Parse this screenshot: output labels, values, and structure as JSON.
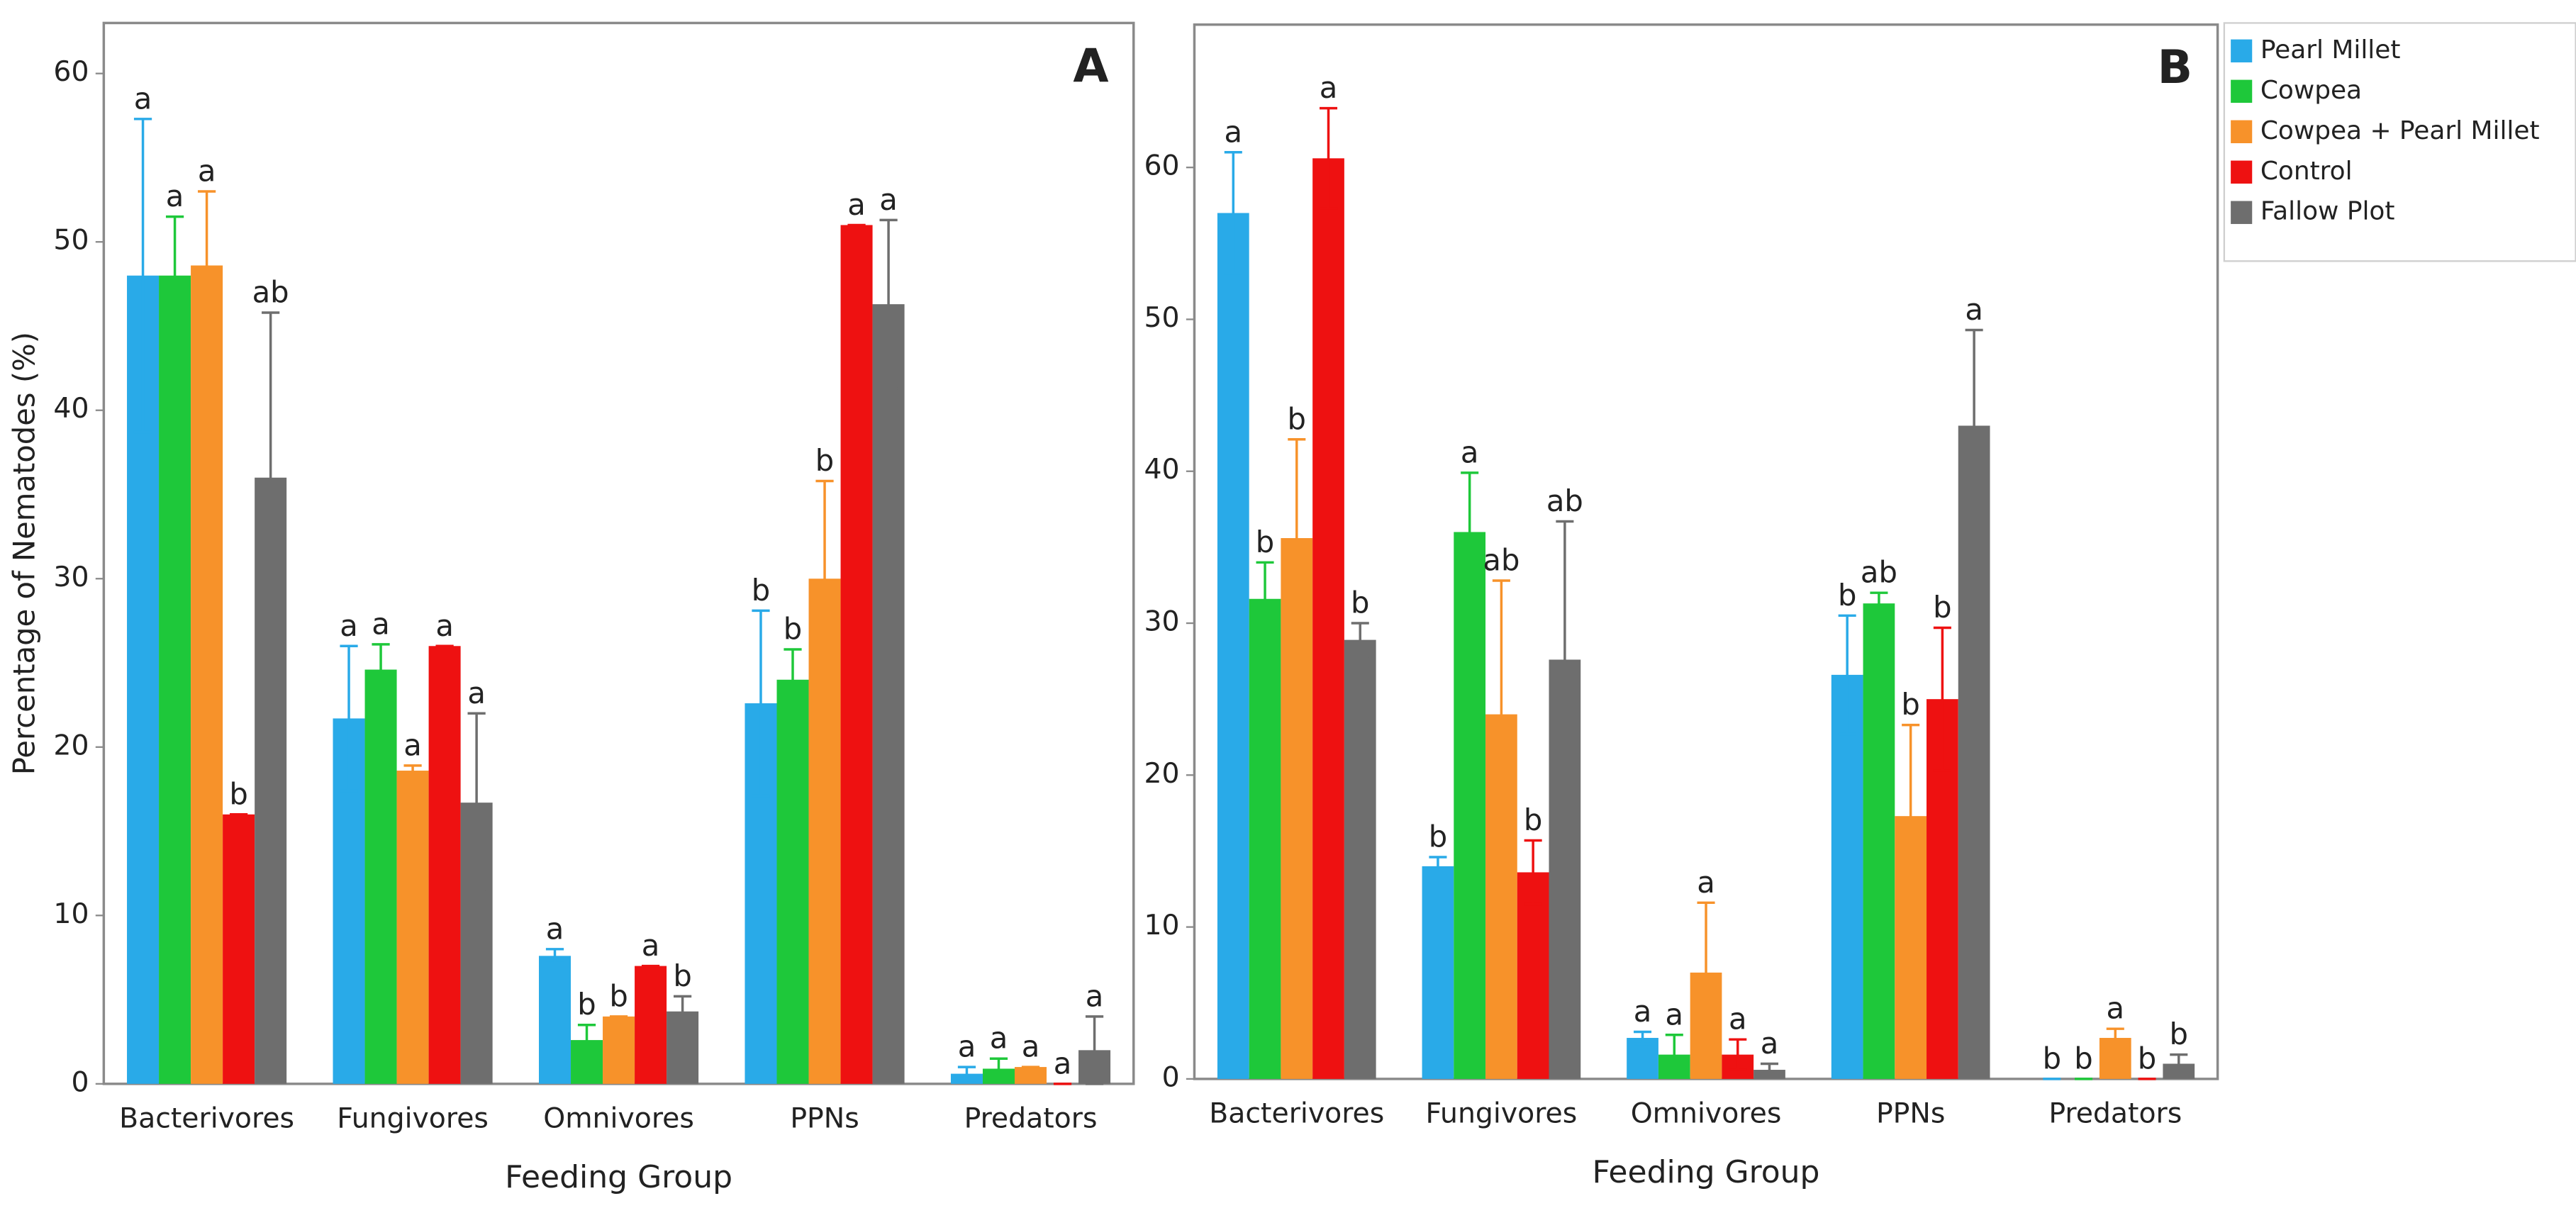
{
  "chart_data": [
    {
      "type": "bar",
      "panel_label": "A",
      "ylabel": "Percentage of Nematodes (%)",
      "xlabel": "Feeding Group",
      "categories": [
        "Bacterivores",
        "Fungivores",
        "Omnivores",
        "PPNs",
        "Predators"
      ],
      "ylim": [
        0,
        63
      ],
      "yticks": [
        0,
        10,
        20,
        30,
        40,
        50,
        60
      ],
      "series": [
        {
          "color": "#29aae8",
          "values": [
            48,
            21.7,
            7.6,
            22.6,
            0.6
          ],
          "errors": [
            9.3,
            4.3,
            0.4,
            5.5,
            0.4
          ],
          "labels": [
            "a",
            "a",
            "a",
            "b",
            "a"
          ]
        },
        {
          "color": "#1ec83a",
          "values": [
            48,
            24.6,
            2.6,
            24,
            0.9
          ],
          "errors": [
            3.5,
            1.5,
            0.9,
            1.8,
            0.6
          ],
          "labels": [
            "a",
            "a",
            "b",
            "b",
            "a"
          ]
        },
        {
          "color": "#f7922a",
          "values": [
            48.6,
            18.6,
            4,
            30,
            1
          ],
          "errors": [
            4.4,
            0.3,
            0,
            5.8,
            0
          ],
          "labels": [
            "a",
            "a",
            "b",
            "b",
            "a"
          ]
        },
        {
          "color": "#ee1111",
          "values": [
            16,
            26,
            7,
            51,
            0
          ],
          "errors": [
            0,
            0,
            0,
            0,
            0
          ],
          "labels": [
            "b",
            "a",
            "a",
            "a",
            "a"
          ]
        },
        {
          "color": "#6e6e6e",
          "values": [
            36,
            16.7,
            4.3,
            46.3,
            2
          ],
          "errors": [
            9.8,
            5.3,
            0.9,
            5,
            2
          ],
          "labels": [
            "ab",
            "a",
            "b",
            "a",
            "a"
          ]
        }
      ]
    },
    {
      "type": "bar",
      "panel_label": "B",
      "xlabel": "Feeding Group",
      "legend": "right",
      "categories": [
        "Bacterivores",
        "Fungivores",
        "Omnivores",
        "PPNs",
        "Predators"
      ],
      "ylim": [
        0,
        69.4
      ],
      "yticks": [
        0,
        10,
        20,
        30,
        40,
        50,
        60
      ],
      "series": [
        {
          "name": "Pearl Millet",
          "color": "#29aae8",
          "values": [
            57,
            14,
            2.7,
            26.6,
            0
          ],
          "errors": [
            4,
            0.6,
            0.4,
            3.9,
            0
          ],
          "labels": [
            "a",
            "b",
            "a",
            "b",
            "b"
          ]
        },
        {
          "name": "Cowpea",
          "color": "#1ec83a",
          "values": [
            31.6,
            36,
            1.6,
            31.3,
            0
          ],
          "errors": [
            2.4,
            3.9,
            1.3,
            0.7,
            0
          ],
          "labels": [
            "b",
            "a",
            "a",
            "ab",
            "b"
          ]
        },
        {
          "name": "Cowpea + Pearl Millet",
          "color": "#f7922a",
          "values": [
            35.6,
            24,
            7,
            17.3,
            2.7
          ],
          "errors": [
            6.5,
            8.8,
            4.6,
            6,
            0.6
          ],
          "labels": [
            "b",
            "ab",
            "a",
            "b",
            "a"
          ]
        },
        {
          "name": "Control",
          "color": "#ee1111",
          "values": [
            60.6,
            13.6,
            1.6,
            25,
            0
          ],
          "errors": [
            3.3,
            2.1,
            1,
            4.7,
            0
          ],
          "labels": [
            "a",
            "b",
            "a",
            "b",
            "b"
          ]
        },
        {
          "name": "Fallow Plot",
          "color": "#6e6e6e",
          "values": [
            28.9,
            27.6,
            0.6,
            43,
            1
          ],
          "errors": [
            1.1,
            9.1,
            0.4,
            6.3,
            0.6
          ],
          "labels": [
            "b",
            "ab",
            "a",
            "a",
            "b"
          ]
        }
      ]
    }
  ]
}
